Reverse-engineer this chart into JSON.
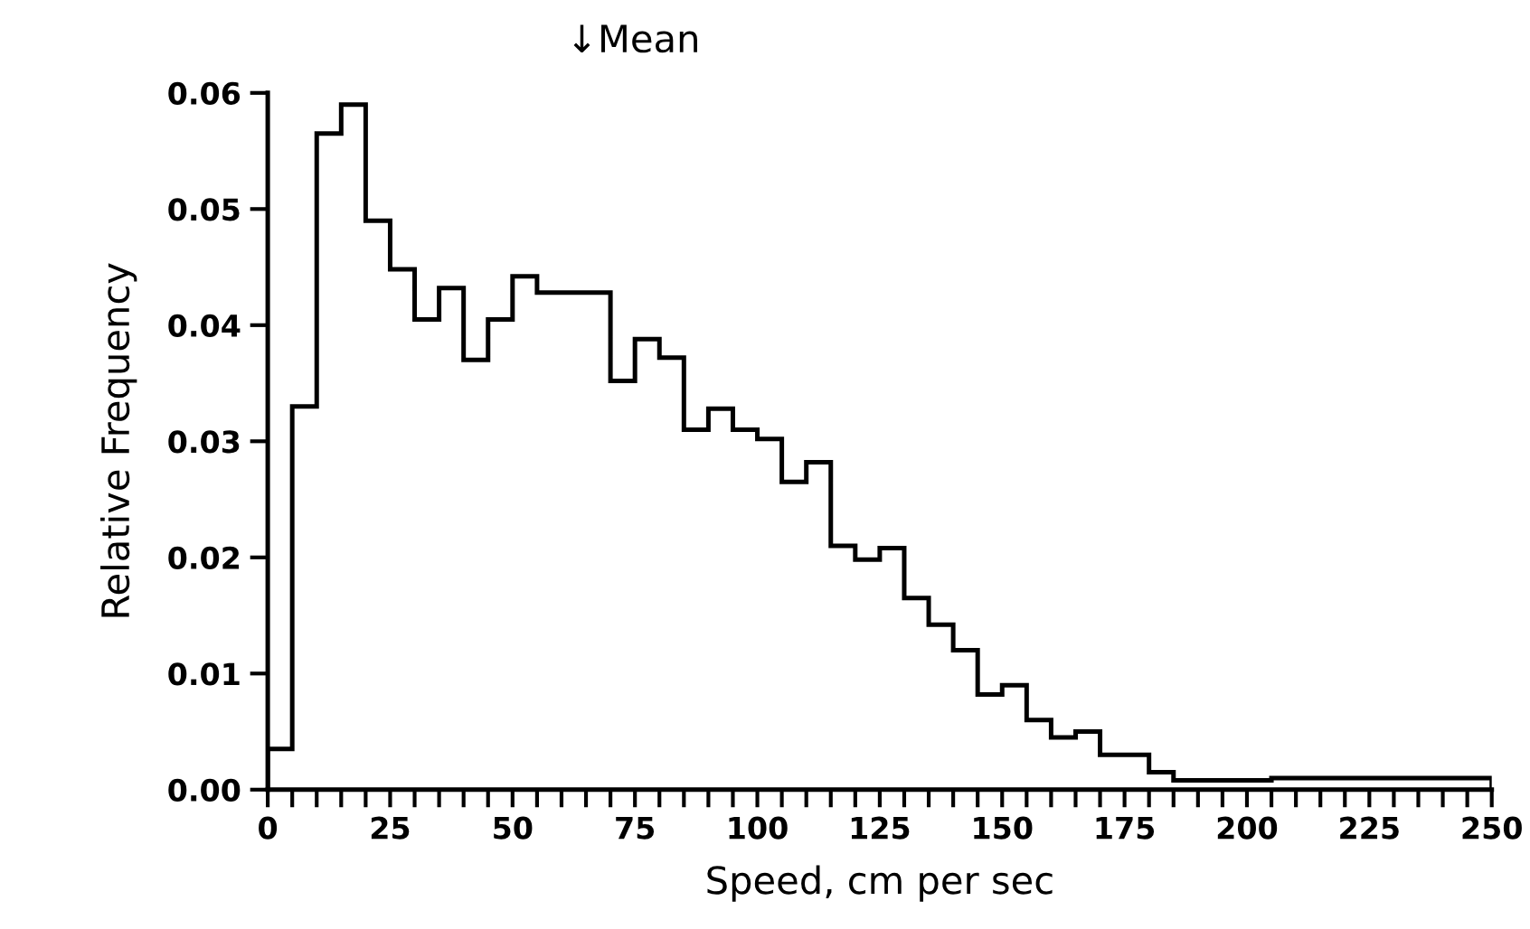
{
  "chart_data": {
    "type": "histogram",
    "xlabel": "Speed, cm per sec",
    "ylabel": "Relative Frequency",
    "bins": [
      0,
      5,
      10,
      15,
      20,
      25,
      30,
      35,
      40,
      45,
      50,
      55,
      60,
      65,
      70,
      75,
      80,
      85,
      90,
      95,
      100,
      105,
      110,
      115,
      120,
      125,
      130,
      135,
      140,
      145,
      150,
      155,
      160,
      165,
      170,
      175,
      180,
      185,
      190,
      195,
      200,
      205,
      210,
      215,
      220,
      225,
      230,
      235,
      240,
      245,
      250
    ],
    "values": [
      0.0035,
      0.033,
      0.0565,
      0.059,
      0.049,
      0.0448,
      0.0405,
      0.0432,
      0.037,
      0.0405,
      0.0442,
      0.0428,
      0.0428,
      0.0428,
      0.0352,
      0.0388,
      0.0372,
      0.031,
      0.0328,
      0.031,
      0.0302,
      0.0265,
      0.0282,
      0.021,
      0.0198,
      0.0208,
      0.0165,
      0.0142,
      0.012,
      0.0082,
      0.009,
      0.006,
      0.0045,
      0.005,
      0.003,
      0.003,
      0.0015,
      0.0008,
      0.0008,
      0.0008,
      0.0008,
      0.001,
      0.001,
      0.001,
      0.001,
      0.001,
      0.001,
      0.001,
      0.001,
      0.001
    ],
    "color": "#000000",
    "xlim": [
      0,
      250
    ],
    "ylim": [
      0,
      0.06
    ],
    "xticks": [
      0,
      {
        "value": 5,
        "label": null
      },
      {
        "value": 10,
        "label": null
      },
      {
        "value": 15,
        "label": null
      },
      {
        "value": 20,
        "label": null
      },
      25,
      {
        "value": 30,
        "label": null
      },
      {
        "value": 35,
        "label": null
      },
      {
        "value": 40,
        "label": null
      },
      {
        "value": 45,
        "label": null
      },
      50,
      {
        "value": 55,
        "label": null
      },
      {
        "value": 60,
        "label": null
      },
      {
        "value": 65,
        "label": null
      },
      {
        "value": 70,
        "label": null
      },
      75,
      {
        "value": 80,
        "label": null
      },
      {
        "value": 85,
        "label": null
      },
      {
        "value": 90,
        "label": null
      },
      {
        "value": 95,
        "label": null
      },
      100,
      {
        "value": 105,
        "label": null
      },
      {
        "value": 110,
        "label": null
      },
      {
        "value": 115,
        "label": null
      },
      {
        "value": 120,
        "label": null
      },
      125,
      {
        "value": 130,
        "label": null
      },
      {
        "value": 135,
        "label": null
      },
      {
        "value": 140,
        "label": null
      },
      {
        "value": 145,
        "label": null
      },
      150,
      {
        "value": 155,
        "label": null
      },
      {
        "value": 160,
        "label": null
      },
      {
        "value": 165,
        "label": null
      },
      {
        "value": 170,
        "label": null
      },
      175,
      {
        "value": 180,
        "label": null
      },
      {
        "value": 185,
        "label": null
      },
      {
        "value": 190,
        "label": null
      },
      {
        "value": 195,
        "label": null
      },
      200,
      {
        "value": 205,
        "label": null
      },
      {
        "value": 210,
        "label": null
      },
      {
        "value": 215,
        "label": null
      },
      {
        "value": 220,
        "label": null
      },
      225,
      {
        "value": 230,
        "label": null
      },
      {
        "value": 235,
        "label": null
      },
      {
        "value": 240,
        "label": null
      },
      {
        "value": 245,
        "label": null
      },
      250
    ],
    "yticks": [
      {
        "value": 0,
        "label": "0.00"
      },
      {
        "value": 0.01,
        "label": "0.01"
      },
      {
        "value": 0.02,
        "label": "0.02"
      },
      {
        "value": 0.03,
        "label": "0.03"
      },
      {
        "value": 0.04,
        "label": "0.04"
      },
      {
        "value": 0.05,
        "label": "0.05"
      },
      {
        "value": 0.06,
        "label": "0.06"
      }
    ],
    "grid": false,
    "annotations": [
      "↓Mean"
    ]
  }
}
